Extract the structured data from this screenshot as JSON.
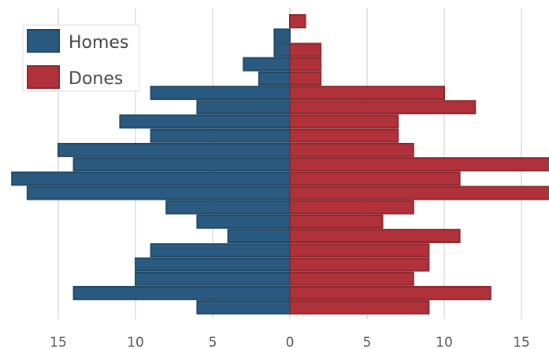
{
  "chart_data": {
    "type": "bar",
    "orientation": "horizontal",
    "layout": "diverging",
    "grid": true,
    "legend_position": "top-left",
    "xlim": [
      -17,
      17
    ],
    "x_ticks": [
      -15,
      -10,
      -5,
      0,
      5,
      10,
      15
    ],
    "x_tick_labels": [
      "15",
      "10",
      "5",
      "0",
      "5",
      "10",
      "15"
    ],
    "series": [
      {
        "name": "Homes",
        "color": "#2b5a80",
        "values": [
          0,
          1,
          1,
          3,
          2,
          9,
          6,
          11,
          9,
          15,
          14,
          18,
          17,
          8,
          6,
          4,
          9,
          10,
          10,
          14,
          6
        ]
      },
      {
        "name": "Dones",
        "color": "#b0313a",
        "values": [
          1,
          0,
          2,
          2,
          2,
          10,
          12,
          7,
          7,
          8,
          17,
          11,
          17,
          8,
          6,
          11,
          9,
          9,
          8,
          13,
          9
        ]
      }
    ]
  }
}
